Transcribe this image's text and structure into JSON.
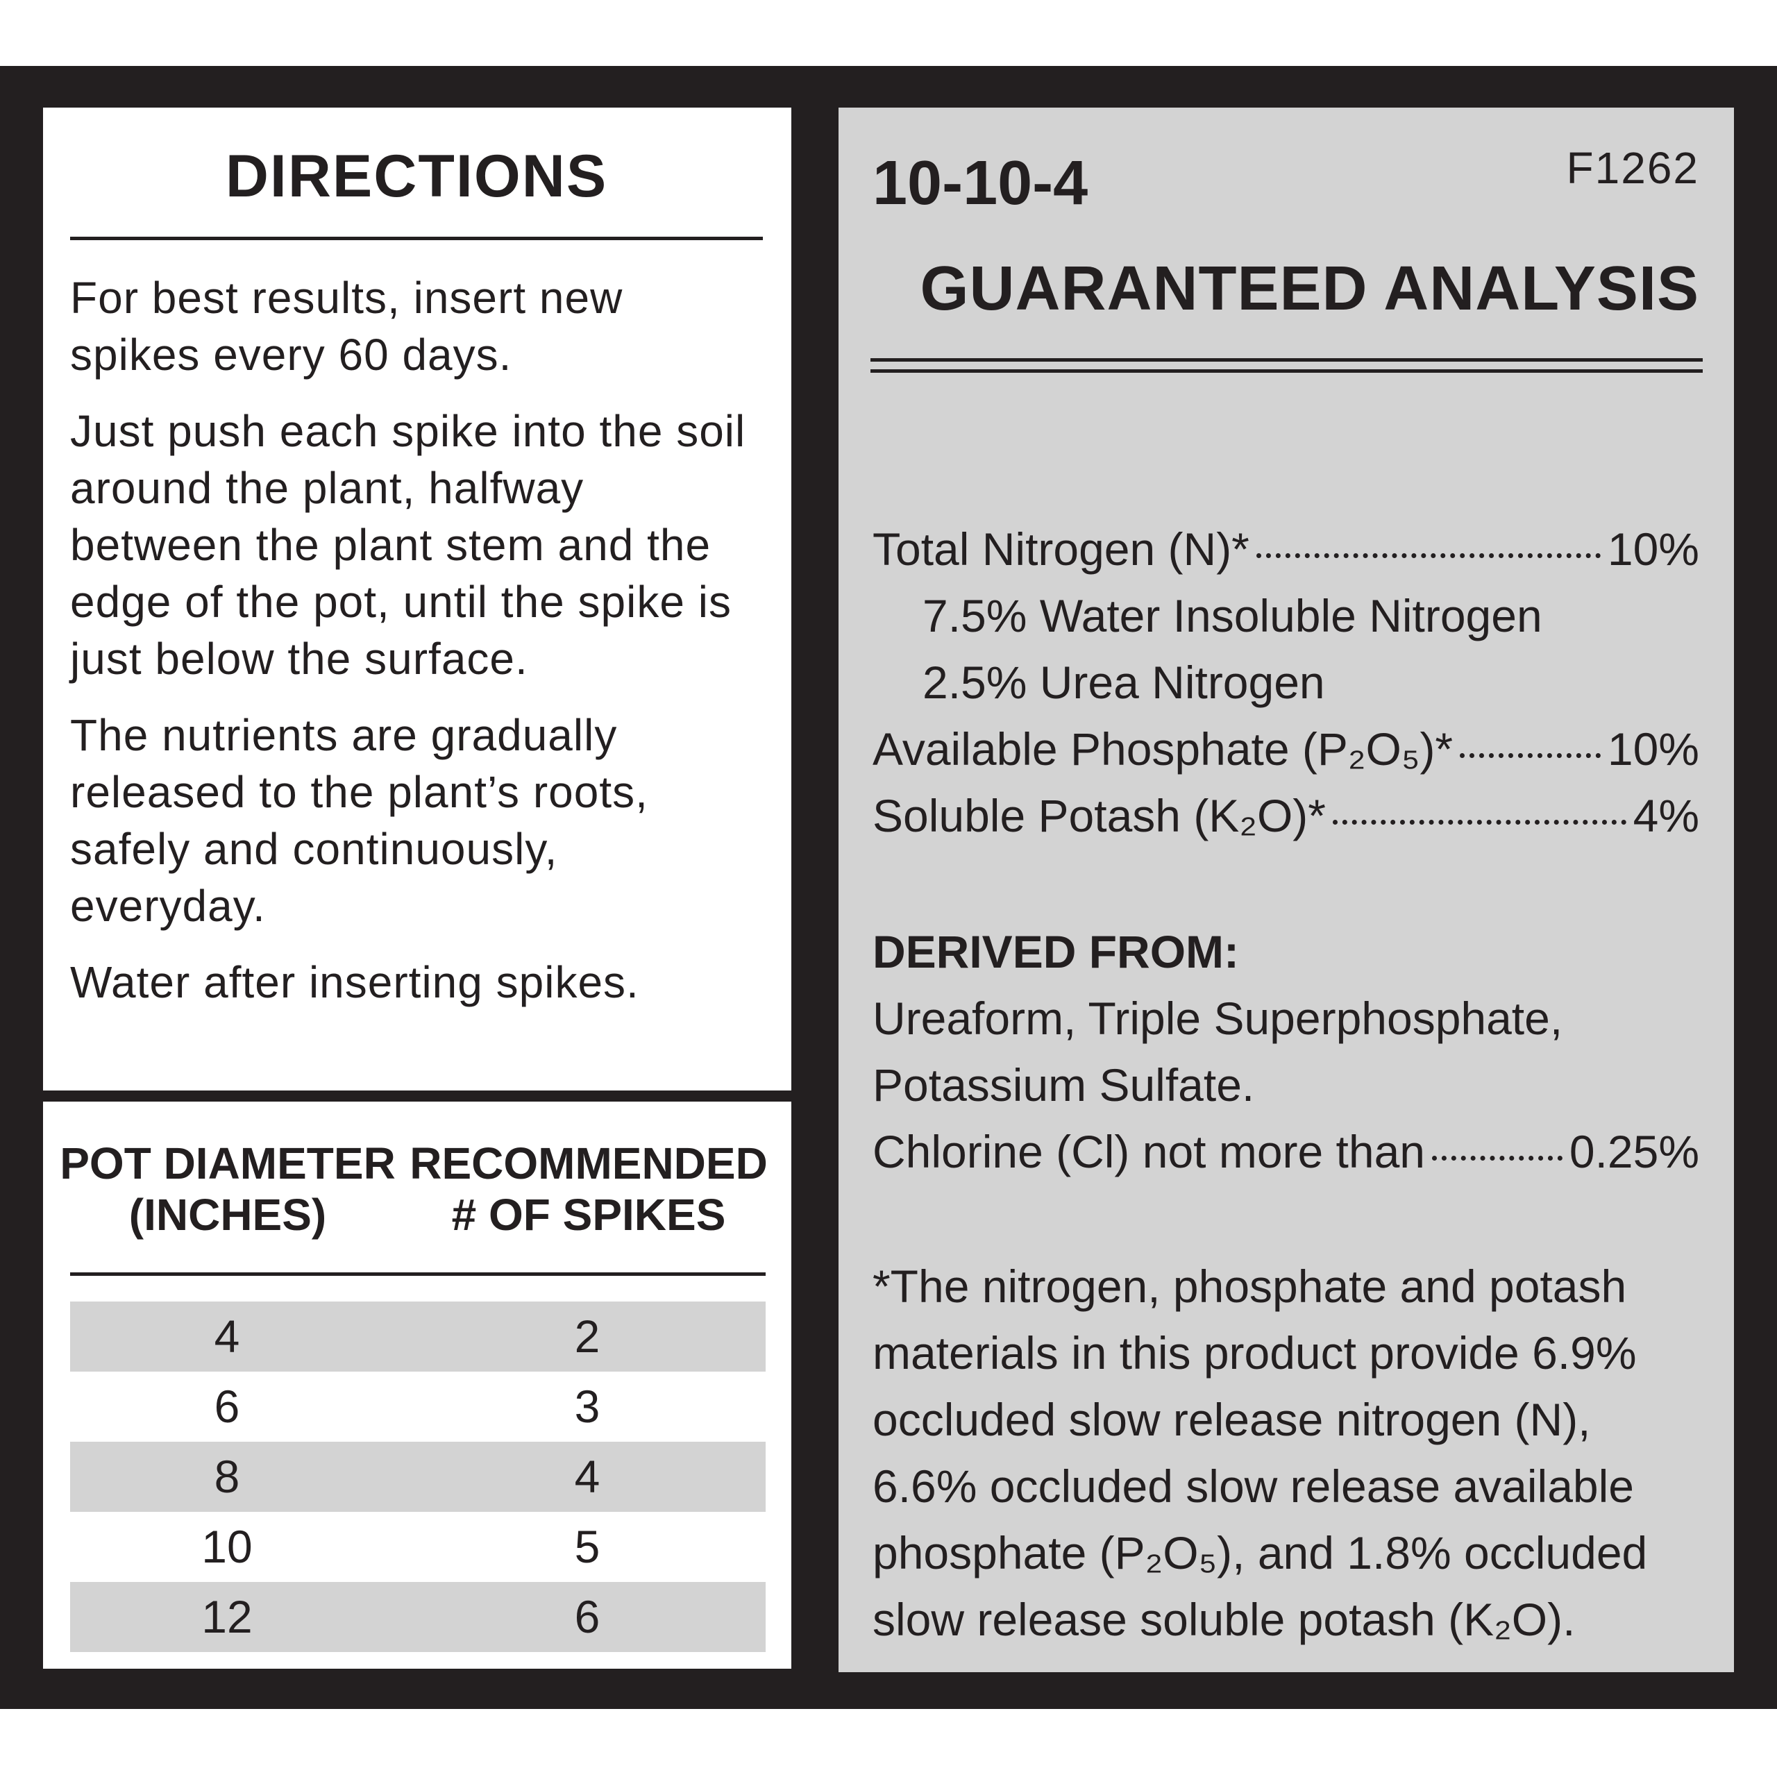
{
  "directions": {
    "title": "DIRECTIONS",
    "paragraphs": [
      "For best results, insert new spikes every 60 days.",
      "Just push each spike into the soil around the plant, halfway between the plant stem and the edge of the pot, until the spike is just below the surface.",
      "The nutrients are gradually released to the plant’s roots, safely and continuously, everyday.",
      "Water after inserting spikes."
    ]
  },
  "table": {
    "headers": [
      [
        "POT DIAMETER",
        "(INCHES)"
      ],
      [
        "RECOMMENDED",
        "# OF SPIKES"
      ]
    ],
    "rows": [
      [
        4,
        2
      ],
      [
        6,
        3
      ],
      [
        8,
        4
      ],
      [
        10,
        5
      ],
      [
        12,
        6
      ]
    ]
  },
  "analysis": {
    "grade": "10-10-4",
    "code": "F1262",
    "title": "GUARANTEED ANALYSIS",
    "items": [
      {
        "label": "Total Nitrogen (N)*",
        "value": "10%"
      },
      {
        "label": "7.5% Water Insoluble Nitrogen"
      },
      {
        "label": "2.5% Urea Nitrogen"
      },
      {
        "label": "Available Phosphate (P₂O₅)*",
        "value": "10%"
      },
      {
        "label": "Soluble Potash (K₂O)*",
        "value": "4%"
      }
    ],
    "derived_title": "DERIVED FROM:",
    "derived_text": "Ureaform, Triple Superphosphate, Potassium Sulfate.",
    "chlorine": {
      "label": "Chlorine (Cl) not more than",
      "value": "0.25%"
    },
    "footnote": "*The nitrogen, phosphate and potash materials in this product provide 6.9% occluded slow release nitrogen (N), 6.6% occluded slow release available phosphate (P₂O₅), and 1.8% occluded slow release soluble potash (K₂O)."
  }
}
